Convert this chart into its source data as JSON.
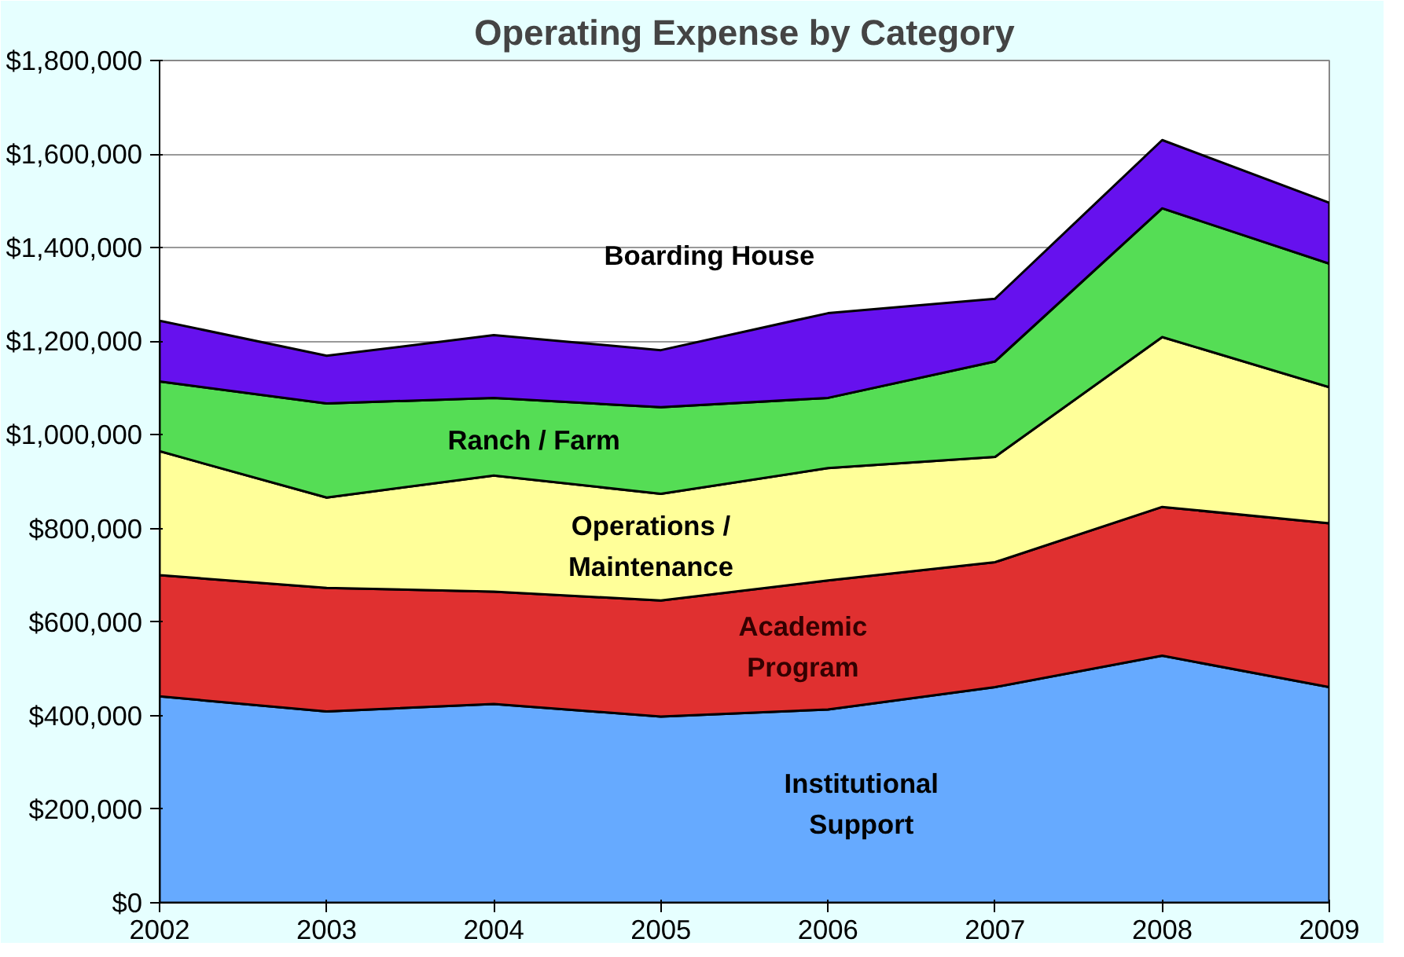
{
  "chart_data": {
    "type": "area",
    "stacked": true,
    "title": "Operating Expense by Category",
    "x": [
      2002,
      2003,
      2004,
      2005,
      2006,
      2007,
      2008,
      2009
    ],
    "series": [
      {
        "name": "Institutional\nSupport",
        "color": "#66aaff",
        "values": [
          441000,
          409000,
          425000,
          398000,
          413000,
          461000,
          528000,
          461000
        ]
      },
      {
        "name": "Academic\nProgram",
        "color": "#e03030",
        "values": [
          259000,
          264000,
          240000,
          248000,
          276000,
          267000,
          318000,
          350000
        ]
      },
      {
        "name": "Operations /\nMaintenance",
        "color": "#ffff99",
        "values": [
          265000,
          193000,
          248000,
          228000,
          240000,
          225000,
          363000,
          291000
        ]
      },
      {
        "name": "Ranch / Farm",
        "color": "#55dd55",
        "values": [
          149000,
          201000,
          166000,
          185000,
          150000,
          204000,
          275000,
          264000
        ]
      },
      {
        "name": "Boarding House",
        "color": "#6611ee",
        "values": [
          130000,
          102000,
          134000,
          122000,
          181000,
          134000,
          146000,
          130000
        ]
      }
    ],
    "xlim": [
      2002,
      2009
    ],
    "xticks": [
      2002,
      2003,
      2004,
      2005,
      2006,
      2007,
      2008,
      2009
    ],
    "ylim": [
      0,
      1800000
    ],
    "yticks": [
      {
        "value": 0,
        "label": "$0"
      },
      {
        "value": 200000,
        "label": "$200,000"
      },
      {
        "value": 400000,
        "label": "$400,000"
      },
      {
        "value": 600000,
        "label": "$600,000"
      },
      {
        "value": 800000,
        "label": "$800,000"
      },
      {
        "value": 1000000,
        "label": "$1,000,000"
      },
      {
        "value": 1200000,
        "label": "$1,200,000"
      },
      {
        "value": 1400000,
        "label": "$1,400,000"
      },
      {
        "value": 1600000,
        "label": "$1,600,000"
      },
      {
        "value": 1800000,
        "label": "$1,800,000"
      }
    ],
    "grid": "y"
  }
}
